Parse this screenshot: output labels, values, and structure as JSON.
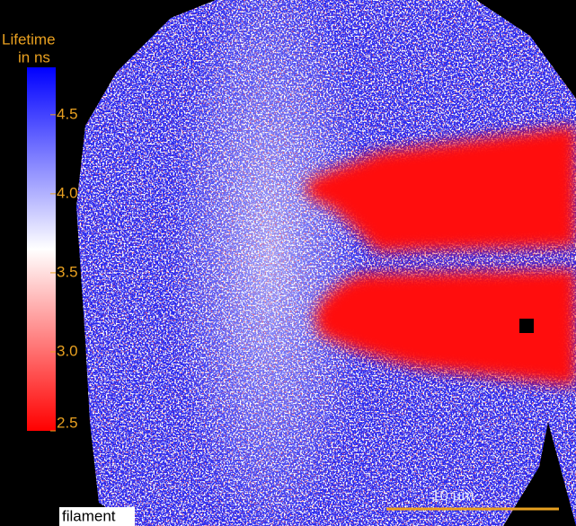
{
  "colorbar": {
    "title": [
      "Lifetime",
      "in ns"
    ],
    "range": [
      2.5,
      4.8
    ],
    "ticks": [
      {
        "value": 2.5,
        "label": "2.5"
      },
      {
        "value": 3,
        "label": "3.0"
      },
      3.5,
      {
        "value": 4,
        "label": "4.0"
      },
      4.5
    ],
    "colors": [
      "#ff0000",
      "#ffffff",
      "#0000ff"
    ]
  },
  "scale_bar": {
    "label": "10 µm"
  },
  "annotation": "filament"
}
